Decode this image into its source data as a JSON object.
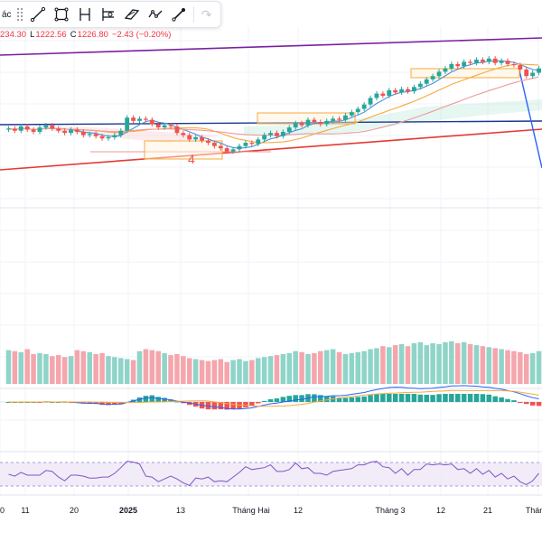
{
  "toolbar": {
    "cut_text": "ác",
    "tools": [
      {
        "name": "trend-line-tool"
      },
      {
        "name": "rectangle-tool"
      },
      {
        "name": "horizontal-ray-tool"
      },
      {
        "name": "long-position-tool"
      },
      {
        "name": "parallel-channel-tool"
      },
      {
        "name": "path-tool"
      },
      {
        "name": "brush-tool"
      }
    ],
    "redo_icon": "redo-icon"
  },
  "ohlc": {
    "high_value": "234.30",
    "low_label": "L",
    "low_value": "1222.56",
    "close_label": "C",
    "close_value": "1226.80",
    "change": "−2.43 (−0.20%)"
  },
  "colors": {
    "up": "#26a69a",
    "down": "#ef5350",
    "vol_up": "#8fd4c8",
    "vol_down": "#f4a6ac",
    "channel": "#7b1fa2",
    "support": "#e53935",
    "mid_line": "#1a3a8f",
    "trend": "#2962ff",
    "ma_fast": "#4a90d9",
    "ma_slow": "#f7a93b"
  },
  "annotation": {
    "wave_label": "4"
  },
  "time_axis": {
    "labels": [
      "0",
      "11",
      "20",
      "2025",
      "13",
      "Tháng Hai",
      "12",
      "Tháng 3",
      "12",
      "21",
      "Thán"
    ]
  },
  "chart_data": {
    "type": "candlestick",
    "close_series": [
      1242,
      1240,
      1244,
      1241,
      1239,
      1243,
      1245,
      1242,
      1240,
      1238,
      1241,
      1239,
      1236,
      1237,
      1235,
      1233,
      1234,
      1236,
      1240,
      1252,
      1249,
      1251,
      1250,
      1246,
      1243,
      1245,
      1244,
      1238,
      1236,
      1232,
      1234,
      1231,
      1229,
      1226,
      1224,
      1221,
      1223,
      1226,
      1229,
      1228,
      1232,
      1236,
      1238,
      1235,
      1239,
      1243,
      1247,
      1245,
      1250,
      1248,
      1246,
      1249,
      1251,
      1250,
      1254,
      1257,
      1260,
      1264,
      1270,
      1274,
      1272,
      1277,
      1275,
      1278,
      1276,
      1280,
      1283,
      1287,
      1290,
      1294,
      1297,
      1301,
      1299,
      1303,
      1302,
      1305,
      1303,
      1306,
      1302,
      1304,
      1301,
      1300,
      1296,
      1290,
      1293,
      1297
    ],
    "volume_series": [
      34,
      33,
      32,
      35,
      30,
      31,
      30,
      28,
      29,
      27,
      28,
      34,
      33,
      32,
      30,
      31,
      28,
      27,
      26,
      25,
      24,
      33,
      35,
      34,
      33,
      31,
      29,
      30,
      28,
      26,
      25,
      24,
      23,
      24,
      25,
      22,
      24,
      25,
      23,
      24,
      26,
      27,
      28,
      29,
      30,
      31,
      33,
      32,
      30,
      31,
      33,
      34,
      35,
      32,
      30,
      31,
      32,
      33,
      35,
      36,
      38,
      37,
      39,
      40,
      38,
      41,
      42,
      39,
      41,
      40,
      42,
      43,
      41,
      42,
      40,
      39,
      38,
      37,
      36,
      35,
      34,
      33,
      32,
      30,
      31,
      33
    ],
    "rsi_range": [
      30,
      70
    ],
    "time_labels": [
      "0",
      "11",
      "20",
      "2025",
      "13",
      "Tháng Hai",
      "12",
      "Tháng 3",
      "12",
      "21",
      "Thán"
    ]
  }
}
